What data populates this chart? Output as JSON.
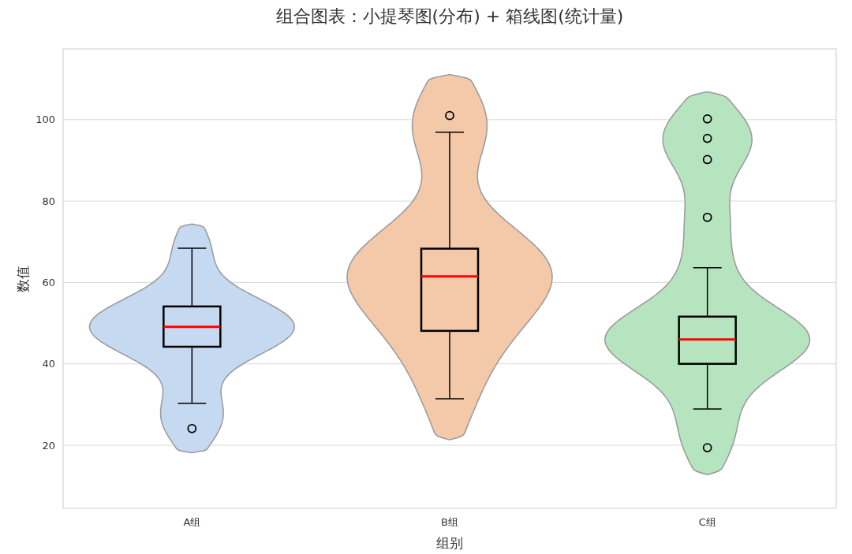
{
  "chart_data": {
    "type": "box",
    "title": "组合图表：小提琴图(分布) + 箱线图(统计量)",
    "xlabel": "组别",
    "ylabel": "数值",
    "categories": [
      "A组",
      "B组",
      "C组"
    ],
    "colors": [
      "#c5d9f1",
      "#f4c9aa",
      "#b5e4bf"
    ],
    "boxes": [
      {
        "low": 30.3,
        "q1": 44.2,
        "median": 49.1,
        "q3": 54.1,
        "high": 68.4,
        "outliers": [
          24.1
        ]
      },
      {
        "low": 31.4,
        "q1": 48.1,
        "median": 61.5,
        "q3": 68.3,
        "high": 96.9,
        "outliers": [
          101
        ]
      },
      {
        "low": 28.9,
        "q1": 40,
        "median": 46,
        "q3": 51.6,
        "high": 63.6,
        "outliers": [
          19.4,
          76,
          90.2,
          95.4,
          100.2
        ]
      }
    ],
    "ylim": [
      4.5,
      117.4
    ],
    "yticks": [
      20,
      40,
      60,
      80,
      100
    ],
    "grid": "y"
  }
}
